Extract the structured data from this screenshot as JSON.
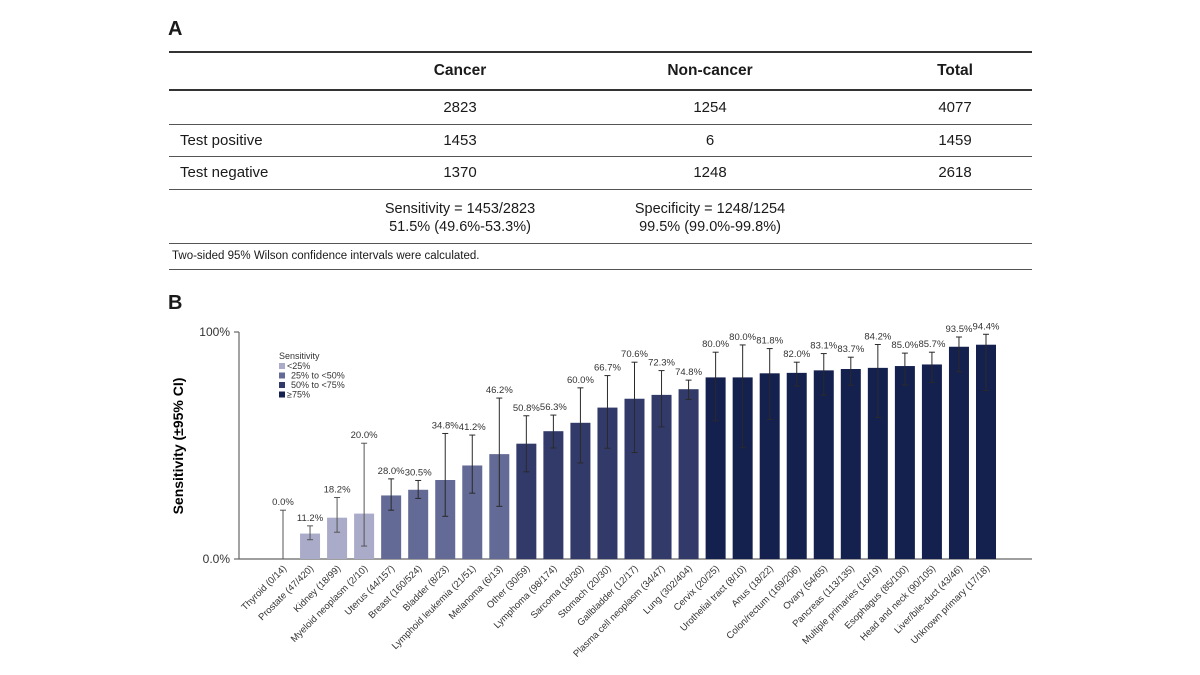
{
  "panel_a": {
    "label": "A",
    "table": {
      "headers": [
        "",
        "Cancer",
        "Non-cancer",
        "Total"
      ],
      "rows": [
        {
          "label": "",
          "cancer": "2823",
          "noncancer": "1254",
          "total": "4077"
        },
        {
          "label": "Test positive",
          "cancer": "1453",
          "noncancer": "6",
          "total": "1459"
        },
        {
          "label": "Test negative",
          "cancer": "1370",
          "noncancer": "1248",
          "total": "2618"
        }
      ],
      "sensitivity": {
        "line1": "Sensitivity = 1453/2823",
        "line2": "51.5% (49.6%-53.3%)"
      },
      "specificity": {
        "line1": "Specificity = 1248/1254",
        "line2": "99.5% (99.0%-99.8%)"
      },
      "footnote": "Two-sided 95% Wilson confidence intervals were calculated."
    }
  },
  "panel_b": {
    "label": "B"
  },
  "chart_data": {
    "type": "bar",
    "title": "",
    "xlabel": "",
    "ylabel": "Sensitivity (±95% CI)",
    "ylim": [
      0,
      100
    ],
    "yticks": [
      "0.0%",
      "100%"
    ],
    "grid": false,
    "legend": {
      "title": "Sensitivity",
      "position": "top-left",
      "entries": [
        {
          "label": "<25%",
          "color": "#a9abc9"
        },
        {
          "label": "25% to <50%",
          "color": "#636a95"
        },
        {
          "label": "50% to <75%",
          "color": "#323a6a"
        },
        {
          "label": "≥75%",
          "color": "#14204d"
        }
      ]
    },
    "categories": [
      "Thyroid (0/14)",
      "Prostate (47/420)",
      "Kidney (18/99)",
      "Myeloid neoplasm (2/10)",
      "Uterus (44/157)",
      "Breast (160/524)",
      "Bladder (8/23)",
      "Lymphoid leukemia (21/51)",
      "Melanoma (6/13)",
      "Other (30/59)",
      "Lymphoma (98/174)",
      "Sarcoma (18/30)",
      "Stomach (20/30)",
      "Gallbladder (12/17)",
      "Plasma cell neoplasm (34/47)",
      "Lung (302/404)",
      "Cervix (20/25)",
      "Urothelial tract (8/10)",
      "Anus (18/22)",
      "Colon/rectum (169/206)",
      "Ovary (54/65)",
      "Pancreas (113/135)",
      "Multiple primaries (16/19)",
      "Esophagus (85/100)",
      "Head and neck (90/105)",
      "Liver/bile-duct (43/46)",
      "Unknown primary (17/18)"
    ],
    "counts": [
      [
        0,
        14
      ],
      [
        47,
        420
      ],
      [
        18,
        99
      ],
      [
        2,
        10
      ],
      [
        44,
        157
      ],
      [
        160,
        524
      ],
      [
        8,
        23
      ],
      [
        21,
        51
      ],
      [
        6,
        13
      ],
      [
        30,
        59
      ],
      [
        98,
        174
      ],
      [
        18,
        30
      ],
      [
        20,
        30
      ],
      [
        12,
        17
      ],
      [
        34,
        47
      ],
      [
        302,
        404
      ],
      [
        20,
        25
      ],
      [
        8,
        10
      ],
      [
        18,
        22
      ],
      [
        169,
        206
      ],
      [
        54,
        65
      ],
      [
        113,
        135
      ],
      [
        16,
        19
      ],
      [
        85,
        100
      ],
      [
        90,
        105
      ],
      [
        43,
        46
      ],
      [
        17,
        18
      ]
    ],
    "values": [
      0.0,
      11.2,
      18.2,
      20.0,
      28.0,
      30.5,
      34.8,
      41.2,
      46.2,
      50.8,
      56.3,
      60.0,
      66.7,
      70.6,
      72.3,
      74.8,
      80.0,
      80.0,
      81.8,
      82.0,
      83.1,
      83.7,
      84.2,
      85.0,
      85.7,
      93.5,
      94.4
    ],
    "value_labels": [
      "0.0%",
      "11.2%",
      "18.2%",
      "20.0%",
      "28.0%",
      "30.5%",
      "34.8%",
      "41.2%",
      "46.2%",
      "50.8%",
      "56.3%",
      "60.0%",
      "66.7%",
      "70.6%",
      "72.3%",
      "74.8%",
      "80.0%",
      "80.0%",
      "81.8%",
      "82.0%",
      "83.1%",
      "83.7%",
      "84.2%",
      "85.0%",
      "85.7%",
      "93.5%",
      "94.4%"
    ],
    "ci_lower": [
      0.0,
      8.5,
      11.8,
      5.7,
      21.5,
      26.7,
      18.8,
      29.0,
      23.2,
      38.4,
      48.9,
      42.3,
      48.8,
      46.9,
      58.2,
      70.3,
      60.9,
      49.0,
      61.5,
      76.2,
      72.2,
      76.6,
      62.4,
      76.7,
      77.8,
      82.5,
      74.2
    ],
    "ci_upper": [
      21.5,
      14.6,
      27.1,
      51.0,
      35.3,
      34.6,
      55.3,
      54.6,
      70.9,
      63.1,
      63.4,
      75.4,
      80.8,
      86.7,
      83.0,
      78.8,
      91.1,
      94.3,
      92.7,
      86.7,
      90.5,
      88.9,
      94.5,
      90.7,
      91.1,
      97.8,
      99.0
    ]
  }
}
